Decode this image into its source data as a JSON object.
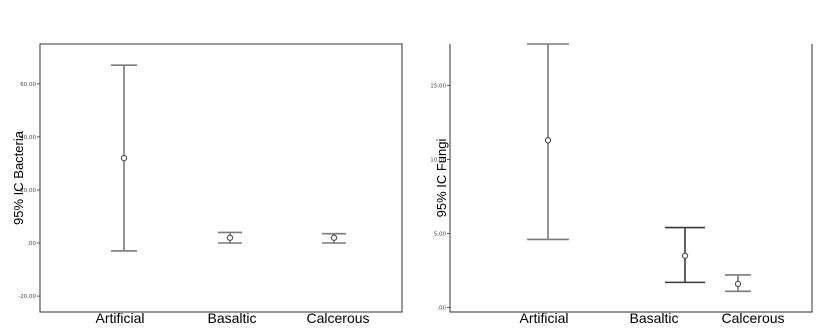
{
  "chart_data": [
    {
      "type": "errorbar",
      "ylabel": "95% IC Bacteria",
      "categories": [
        "Artificial",
        "Basaltic",
        "Calcerous"
      ],
      "mean": [
        32.0,
        2.0,
        2.0
      ],
      "lower": [
        -3.0,
        0.0,
        0.0
      ],
      "upper": [
        67.0,
        4.0,
        3.5
      ],
      "yticks": [
        -20,
        0,
        20,
        40,
        60
      ],
      "ytick_labels": [
        "-20,00",
        ",00",
        "20,00",
        "40,00",
        "60,00"
      ],
      "ylim": [
        -26,
        75
      ]
    },
    {
      "type": "errorbar",
      "ylabel": "95% IC Fungi",
      "categories": [
        "Artificial",
        "Basaltic",
        "Calcerous"
      ],
      "mean": [
        11.3,
        3.5,
        1.6
      ],
      "lower": [
        4.6,
        1.7,
        1.1
      ],
      "upper": [
        17.8,
        5.4,
        2.2
      ],
      "yticks": [
        0,
        5,
        10,
        15
      ],
      "ytick_labels": [
        ",00",
        "5,00",
        "10,00",
        "15,00"
      ],
      "ylim": [
        -0.3,
        17.8
      ]
    }
  ]
}
